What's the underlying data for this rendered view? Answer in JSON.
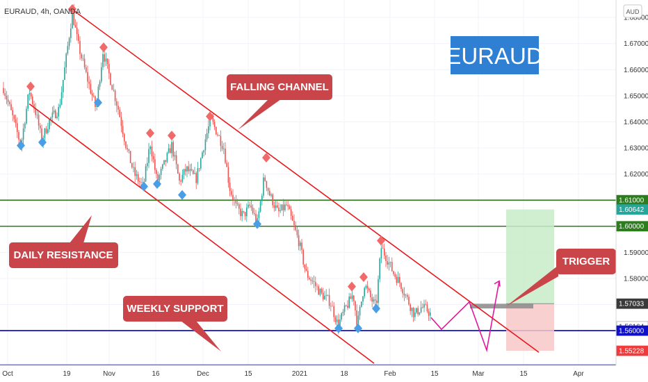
{
  "header": {
    "symbol_label": "EURAUD, 4h, OANDA",
    "currency_button": "AUD"
  },
  "banner": {
    "label": "EURAUD",
    "color": "#2f7fd3"
  },
  "colors": {
    "bull": "#26a69a",
    "bear": "#ef5350",
    "channel": "#e8191c",
    "resistance": "#2d7d1e",
    "support": "#1010c8",
    "callout": "#c9454a",
    "path": "#e0179b",
    "peak": "#f06a6a",
    "trough": "#4a9ee6",
    "target_zone": "#c8ebc8",
    "stop_zone": "#f8c8c8"
  },
  "callouts": [
    {
      "id": "falling-channel",
      "label": "FALLING CHANNEL"
    },
    {
      "id": "daily-resistance",
      "label": "DAILY RESISTANCE"
    },
    {
      "id": "weekly-support",
      "label": "WEEKLY SUPPORT"
    },
    {
      "id": "trigger",
      "label": "TRIGGER"
    }
  ],
  "chart_data": {
    "type": "candlestick",
    "x_ticks": [
      "Oct",
      "19",
      "Nov",
      "16",
      "Dec",
      "15",
      "2021",
      "18",
      "Feb",
      "15",
      "Mar",
      "15",
      "Apr"
    ],
    "y_ticks": [
      "1.57000",
      "1.58000",
      "1.59000",
      "1.62000",
      "1.63000",
      "1.64000",
      "1.65000",
      "1.66000",
      "1.67000",
      "1.68000"
    ],
    "ylim": [
      1.5467,
      1.6867
    ],
    "price_labels": [
      {
        "value": "1.61000",
        "price": 1.61,
        "color": "#2d7d1e"
      },
      {
        "value": "1.60642",
        "price": 1.60642,
        "color": "#26a69a"
      },
      {
        "value": "1.60000",
        "price": 1.6,
        "color": "#2d7d1e"
      },
      {
        "value": "1.57033",
        "price": 1.57033,
        "color": "#3a3a3a"
      },
      {
        "value": "1.56164",
        "price": 1.56164,
        "color": "#ffffff"
      },
      {
        "value": "1.56000",
        "price": 1.56,
        "color": "#1010c8"
      },
      {
        "value": "1.55228",
        "price": 1.55228,
        "color": "#ef3b3b"
      }
    ],
    "horizontal_levels": [
      {
        "kind": "resistance",
        "price": 1.61
      },
      {
        "kind": "resistance",
        "price": 1.6
      },
      {
        "kind": "support",
        "price": 1.56
      },
      {
        "kind": "support",
        "price": 1.5468
      }
    ],
    "channel": {
      "upper": [
        [
          103,
          1.68323
        ],
        [
          775,
          1.5517
        ]
      ],
      "lower": [
        [
          42,
          1.6469
        ],
        [
          538,
          1.54746
        ]
      ]
    },
    "close_path": [
      [
        5,
        1.653
      ],
      [
        18,
        1.642
      ],
      [
        30,
        1.631
      ],
      [
        42,
        1.652
      ],
      [
        52,
        1.643
      ],
      [
        60,
        1.633
      ],
      [
        72,
        1.641
      ],
      [
        85,
        1.645
      ],
      [
        97,
        1.668
      ],
      [
        104,
        1.682
      ],
      [
        112,
        1.67
      ],
      [
        124,
        1.658
      ],
      [
        138,
        1.645
      ],
      [
        148,
        1.667
      ],
      [
        158,
        1.657
      ],
      [
        170,
        1.645
      ],
      [
        182,
        1.63
      ],
      [
        193,
        1.62
      ],
      [
        206,
        1.615
      ],
      [
        216,
        1.632
      ],
      [
        226,
        1.617
      ],
      [
        238,
        1.625
      ],
      [
        247,
        1.631
      ],
      [
        258,
        1.617
      ],
      [
        268,
        1.622
      ],
      [
        282,
        1.618
      ],
      [
        295,
        1.633
      ],
      [
        303,
        1.641
      ],
      [
        312,
        1.636
      ],
      [
        322,
        1.63
      ],
      [
        330,
        1.615
      ],
      [
        340,
        1.607
      ],
      [
        350,
        1.604
      ],
      [
        360,
        1.608
      ],
      [
        370,
        1.601
      ],
      [
        380,
        1.619
      ],
      [
        388,
        1.612
      ],
      [
        400,
        1.605
      ],
      [
        412,
        1.608
      ],
      [
        420,
        1.602
      ],
      [
        430,
        1.594
      ],
      [
        440,
        1.582
      ],
      [
        452,
        1.578
      ],
      [
        462,
        1.574
      ],
      [
        475,
        1.571
      ],
      [
        486,
        1.562
      ],
      [
        496,
        1.568
      ],
      [
        508,
        1.574
      ],
      [
        514,
        1.562
      ],
      [
        524,
        1.578
      ],
      [
        534,
        1.572
      ],
      [
        541,
        1.569
      ],
      [
        548,
        1.592
      ],
      [
        556,
        1.588
      ],
      [
        566,
        1.582
      ],
      [
        576,
        1.578
      ],
      [
        586,
        1.572
      ],
      [
        596,
        1.566
      ],
      [
        606,
        1.569
      ],
      [
        614,
        1.568
      ],
      [
        620,
        1.566
      ]
    ],
    "peak_markers": [
      [
        44,
        1.65356
      ],
      [
        104,
        1.68323
      ],
      [
        149,
        1.66858
      ],
      [
        216,
        1.63568
      ],
      [
        247,
        1.63476
      ],
      [
        302,
        1.64209
      ],
      [
        383,
        1.62628
      ],
      [
        506,
        1.5769
      ],
      [
        523,
        1.5805
      ],
      [
        548,
        1.59449
      ]
    ],
    "trough_markers": [
      [
        30,
        1.63095
      ],
      [
        61,
        1.63217
      ],
      [
        141,
        1.64739
      ],
      [
        207,
        1.61524
      ],
      [
        226,
        1.61619
      ],
      [
        262,
        1.61201
      ],
      [
        370,
        1.60083
      ],
      [
        487,
        1.56087
      ],
      [
        515,
        1.56087
      ],
      [
        541,
        1.56847
      ]
    ],
    "projection_path": [
      [
        620,
        1.565
      ],
      [
        635,
        1.5605
      ],
      [
        675,
        1.571
      ],
      [
        700,
        1.5525
      ],
      [
        718,
        1.579
      ]
    ],
    "trade": {
      "x1": 728,
      "x2": 797,
      "entry": 1.57033,
      "target": 1.60642,
      "stop": 1.55228
    },
    "trigger_box": {
      "x1": 676,
      "x2": 767,
      "high": 1.5703,
      "low": 1.5685
    }
  }
}
